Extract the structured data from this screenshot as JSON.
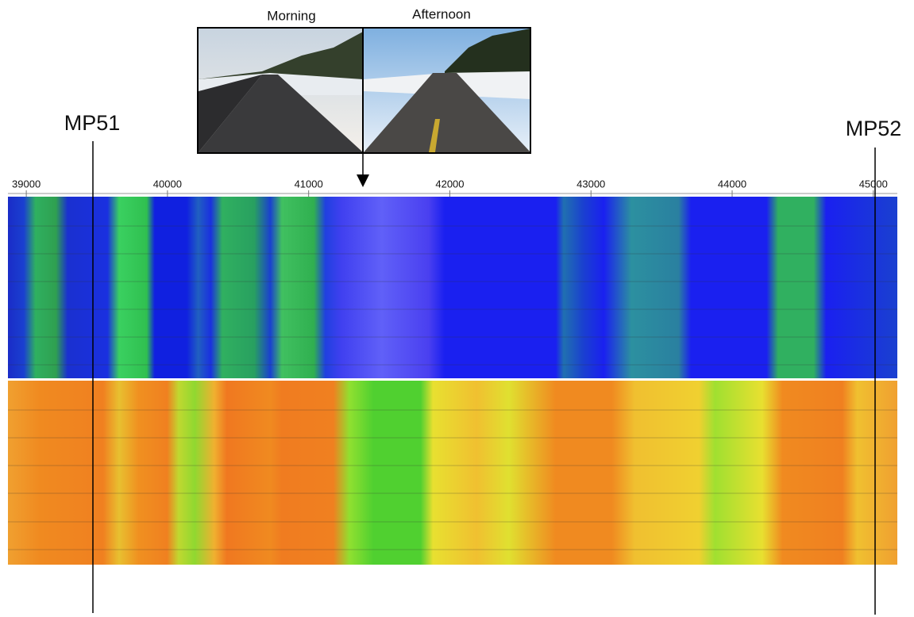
{
  "photos": {
    "left_label": "Morning",
    "right_label": "Afternoon"
  },
  "markers": {
    "left": "MP51",
    "right": "MP52"
  },
  "axis": {
    "xlim": [
      38870,
      45170
    ],
    "ticks": [
      39000,
      40000,
      41000,
      42000,
      43000,
      44000,
      45000
    ]
  }
}
